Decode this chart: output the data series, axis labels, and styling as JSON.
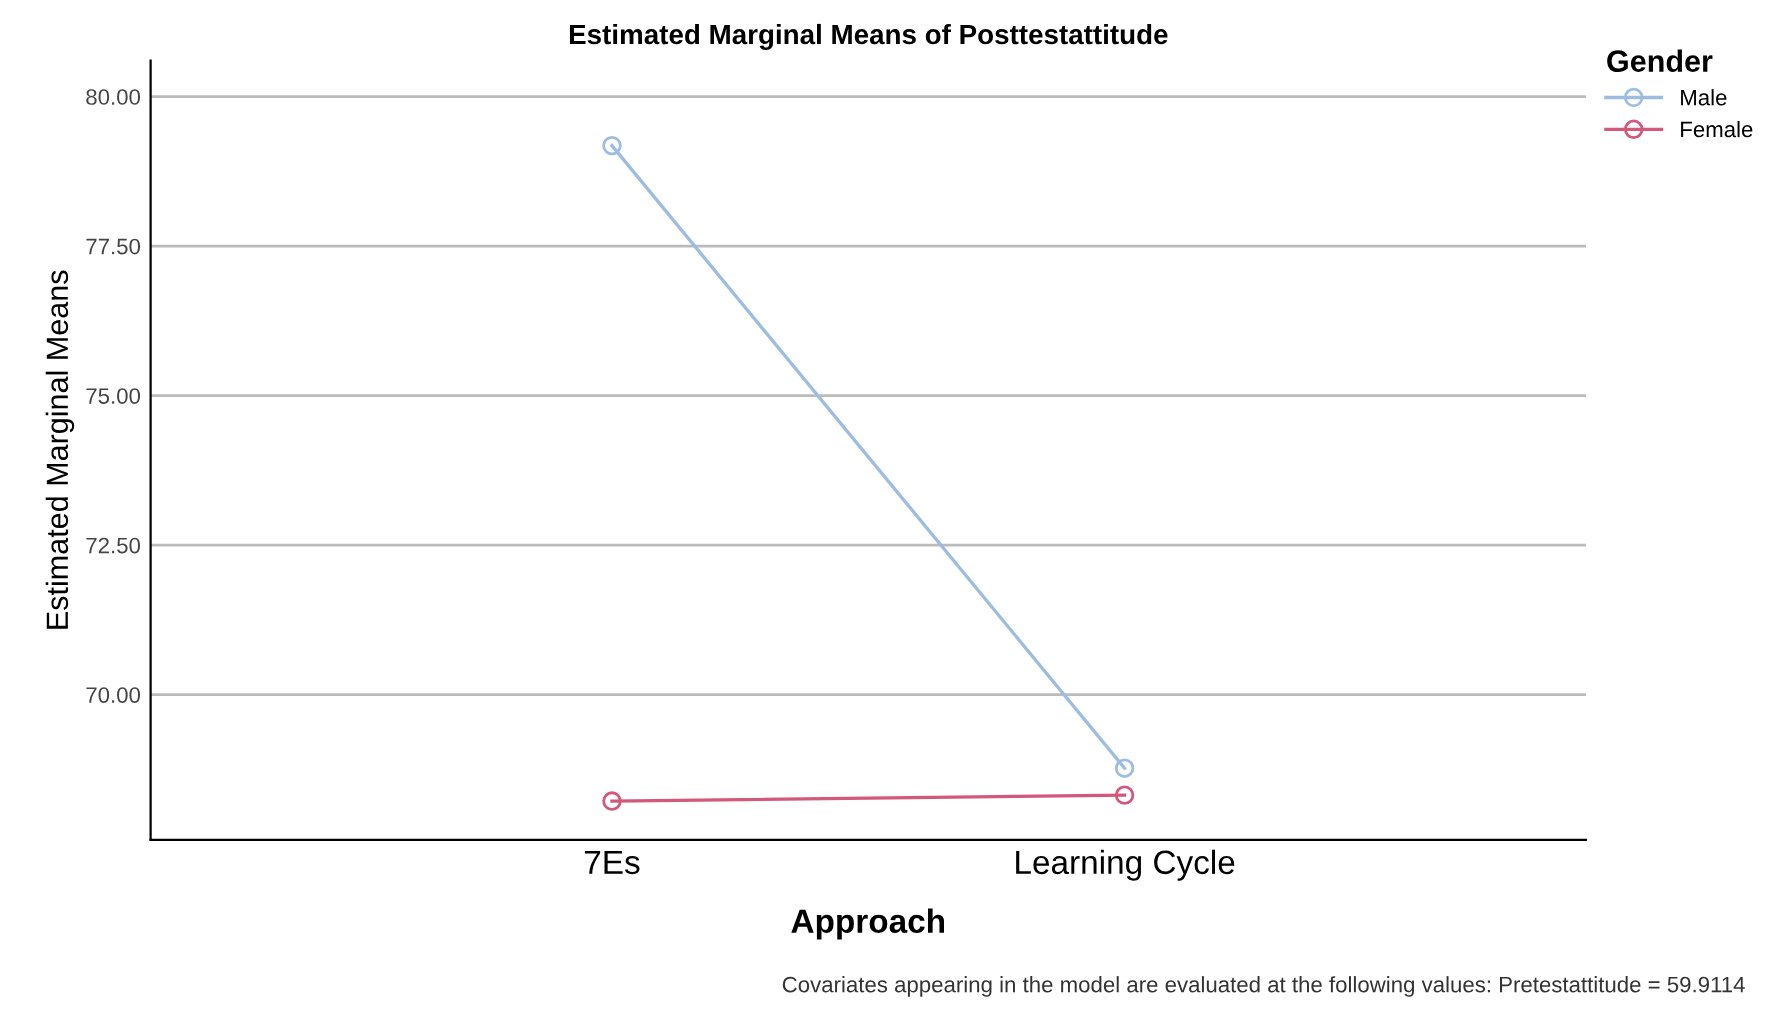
{
  "chart_data": {
    "type": "line",
    "title": "Estimated Marginal Means of Posttestattitude",
    "xlabel": "Approach",
    "ylabel": "Estimated Marginal Means",
    "legend_title": "Gender",
    "categories": [
      "7Es",
      "Learning Cycle"
    ],
    "series": [
      {
        "name": "Male",
        "color": "#9dbde0",
        "values": [
          79.18,
          68.77
        ]
      },
      {
        "name": "Female",
        "color": "#d4587a",
        "values": [
          68.22,
          68.32
        ]
      }
    ],
    "ylim": [
      67.57,
      80.6
    ],
    "yticks": [
      {
        "value": 70,
        "label": "70.00"
      },
      {
        "value": 72.5,
        "label": "72.50"
      },
      {
        "value": 75,
        "label": "75.00"
      },
      {
        "value": 77.5,
        "label": "77.50"
      },
      {
        "value": 80,
        "label": "80.00"
      }
    ],
    "grid": "y",
    "legend": "top right",
    "marker": "circle",
    "line_style": "solid",
    "annotations": [
      "Covariates appearing in the model are evaluated at the following values: Pretestattitude = 59.9114"
    ]
  }
}
